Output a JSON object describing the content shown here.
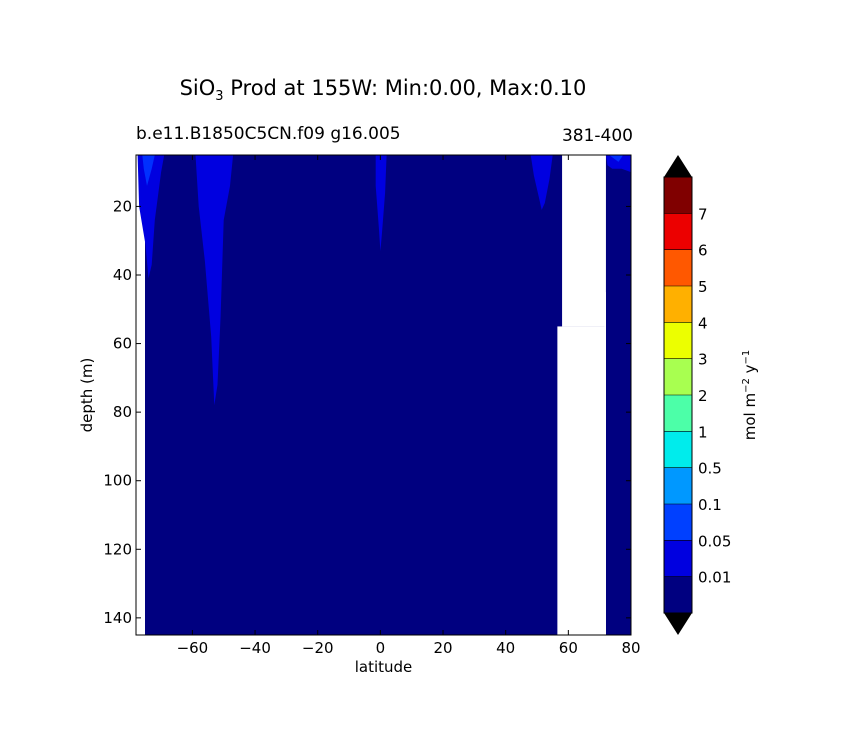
{
  "header": {
    "title_main": "SiO",
    "title_sub": "3",
    "title_rest": " Prod at 155W: Min:0.00, Max:0.10",
    "case_name": "b.e11.B1850C5CN.f09 g16.005",
    "years": "381-400"
  },
  "chart_data": {
    "type": "heatmap",
    "xlabel": "latitude",
    "ylabel": "depth (m)",
    "xlim": [
      -78,
      80
    ],
    "ylim": [
      145,
      5
    ],
    "xticks": [
      -60,
      -40,
      -20,
      0,
      20,
      40,
      60,
      80
    ],
    "yticks": [
      20,
      40,
      60,
      80,
      100,
      120,
      140
    ],
    "background_level_color": "#000080",
    "land_mask": [
      {
        "name": "land-block-upper",
        "x": [
          58,
          72
        ],
        "depth": [
          5,
          55
        ]
      },
      {
        "name": "land-block-lower",
        "x": [
          56.5,
          72
        ],
        "depth": [
          55,
          145
        ]
      },
      {
        "name": "land-strip",
        "x": [
          71.5,
          72
        ],
        "depth": [
          45,
          145
        ]
      }
    ],
    "features": [
      {
        "name": "antarctic-blob",
        "color": "#0000e0",
        "points": [
          [
            -76,
            5
          ],
          [
            -69,
            5
          ],
          [
            -70,
            10
          ],
          [
            -72,
            24
          ],
          [
            -73,
            37
          ],
          [
            -74,
            41
          ],
          [
            -75,
            31
          ],
          [
            -77,
            20
          ],
          [
            -77.5,
            5
          ]
        ]
      },
      {
        "name": "antarctic-blob-core",
        "color": "#0030ff",
        "points": [
          [
            -76,
            5
          ],
          [
            -72,
            5
          ],
          [
            -73,
            9
          ],
          [
            -74.5,
            14
          ],
          [
            -75.5,
            9
          ]
        ]
      },
      {
        "name": "south-subpolar-tongue",
        "color": "#0000e0",
        "points": [
          [
            -59,
            5
          ],
          [
            -47,
            5
          ],
          [
            -48,
            14
          ],
          [
            -50,
            24
          ],
          [
            -51,
            52
          ],
          [
            -52,
            72
          ],
          [
            -53,
            78
          ],
          [
            -54,
            58
          ],
          [
            -56,
            36
          ],
          [
            -58,
            20
          ]
        ]
      },
      {
        "name": "equator-tongue",
        "color": "#0000e0",
        "points": [
          [
            -1.5,
            5
          ],
          [
            2,
            5
          ],
          [
            1.5,
            16
          ],
          [
            0.5,
            28
          ],
          [
            0,
            33
          ],
          [
            -0.5,
            26
          ],
          [
            -1.5,
            14
          ]
        ]
      },
      {
        "name": "north-tongue",
        "color": "#0000e0",
        "points": [
          [
            48,
            5
          ],
          [
            55,
            5
          ],
          [
            54,
            12
          ],
          [
            52.5,
            19
          ],
          [
            51.5,
            21
          ],
          [
            50.5,
            17
          ],
          [
            49,
            11
          ]
        ]
      },
      {
        "name": "arctic-patch",
        "color": "#0000e0",
        "points": [
          [
            72,
            5
          ],
          [
            80,
            5
          ],
          [
            80,
            10
          ],
          [
            77,
            9
          ],
          [
            74,
            9
          ],
          [
            72.5,
            8
          ]
        ]
      },
      {
        "name": "arctic-patch-core",
        "color": "#0030ff",
        "points": [
          [
            73,
            5
          ],
          [
            77.5,
            5
          ],
          [
            76,
            7
          ]
        ]
      }
    ],
    "colorbar": {
      "label_base": "mol m",
      "label_exp1": "−2",
      "label_mid": " y",
      "label_exp2": "−1",
      "extend": "both",
      "under_color": "#000000",
      "over_color": "#000000",
      "levels": [
        {
          "color": "#000080",
          "label": "0.01"
        },
        {
          "color": "#0000e0",
          "label": "0.05"
        },
        {
          "color": "#0040ff",
          "label": "0.1"
        },
        {
          "color": "#0098ff",
          "label": "0.5"
        },
        {
          "color": "#00ecec",
          "label": "1"
        },
        {
          "color": "#4cffa8",
          "label": "2"
        },
        {
          "color": "#a8ff50",
          "label": "3"
        },
        {
          "color": "#ecff00",
          "label": "4"
        },
        {
          "color": "#ffb000",
          "label": "5"
        },
        {
          "color": "#ff5800",
          "label": "6"
        },
        {
          "color": "#ec0000",
          "label": "7"
        },
        {
          "color": "#800000",
          "label": ""
        }
      ]
    }
  }
}
